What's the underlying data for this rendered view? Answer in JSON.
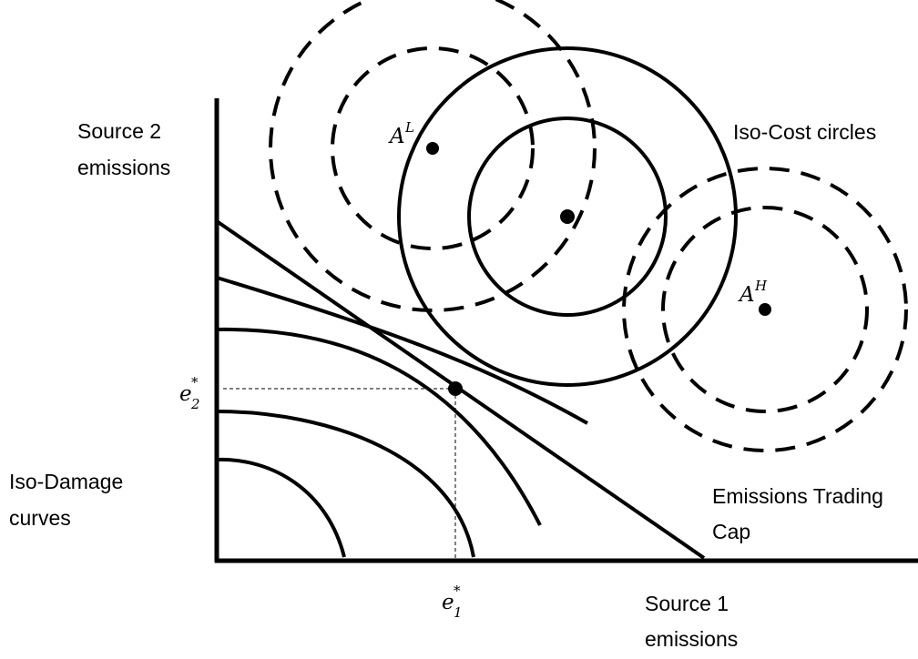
{
  "labels": {
    "y_axis": [
      "Source 2",
      "emissions"
    ],
    "x_axis": [
      "Source 1",
      "emissions"
    ],
    "iso_cost": "Iso-Cost circles",
    "iso_damage": [
      "Iso-Damage",
      "curves"
    ],
    "trading": [
      "Emissions Trading",
      "Cap"
    ],
    "e1_base": "e",
    "e1_sub": "1",
    "e1_sup": "*",
    "e2_base": "e",
    "e2_sub": "2",
    "e2_sup": "*",
    "AL_base": "A",
    "AL_sup": "L",
    "AH_base": "A",
    "AH_sup": "H"
  }
}
